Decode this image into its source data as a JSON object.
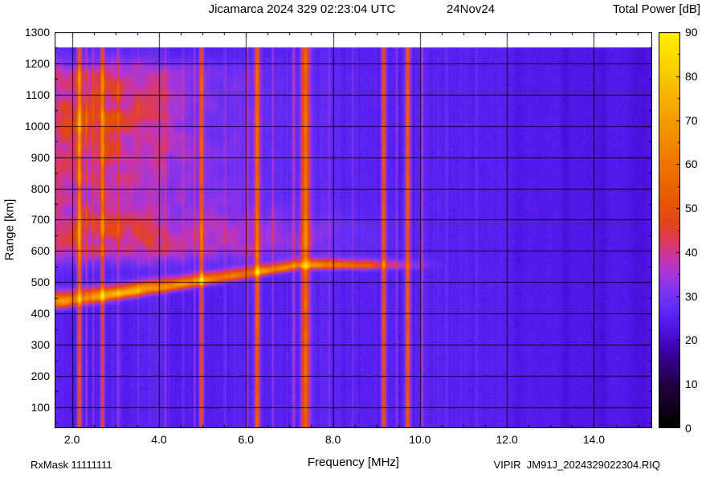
{
  "header": {
    "title": "Jicamarca 2024 329 02:23:04 UTC",
    "date": "24Nov24"
  },
  "footer": {
    "rx_mask": "RxMask 11111111",
    "filename": "VIPIR  JM91J_2024329022304.RIQ"
  },
  "chart_data": {
    "type": "heatmap",
    "title": "Jicamarca 2024 329 02:23:04 UTC 24Nov24",
    "xlabel": "Frequency [MHz]",
    "ylabel": "Range [km]",
    "x_range": [
      1.6,
      15.34
    ],
    "y_range": [
      33,
      1300
    ],
    "x_ticks": [
      2,
      4,
      6,
      8,
      10,
      12,
      14
    ],
    "x_tick_labels": [
      "2.0",
      "4.0",
      "6.0",
      "8.0",
      "10.0",
      "12.0",
      "14.0"
    ],
    "x_minor_step": 0.5,
    "y_ticks": [
      100,
      200,
      300,
      400,
      500,
      600,
      700,
      800,
      900,
      1000,
      1100,
      1200,
      1300
    ],
    "y_tick_labels": [
      "100",
      "200",
      "300",
      "400",
      "500",
      "600",
      "700",
      "800",
      "900",
      "1000",
      "1100",
      "1200",
      "1300"
    ],
    "y_minor_step": 50,
    "grid": true,
    "data_top_km": 1250,
    "colorbar": {
      "label": "Total Power [dB]",
      "min": 0,
      "max": 90,
      "ticks": [
        0,
        10,
        20,
        30,
        40,
        50,
        60,
        70,
        80,
        90
      ],
      "tick_labels": [
        "0",
        "10",
        "20",
        "30",
        "40",
        "50",
        "60",
        "70",
        "80",
        "90"
      ],
      "stops": [
        [
          0,
          "#000000"
        ],
        [
          9,
          "#1e0038"
        ],
        [
          17,
          "#3a00a0"
        ],
        [
          23,
          "#4f14e6"
        ],
        [
          27,
          "#5f2bf5"
        ],
        [
          31,
          "#7d33ef"
        ],
        [
          35,
          "#a836d8"
        ],
        [
          39,
          "#cc36a4"
        ],
        [
          43,
          "#dd3a50"
        ],
        [
          47,
          "#e24718"
        ],
        [
          52,
          "#e85800"
        ],
        [
          60,
          "#ef7500"
        ],
        [
          70,
          "#f59b00"
        ],
        [
          80,
          "#fac800"
        ],
        [
          90,
          "#fff200"
        ]
      ]
    },
    "features": {
      "background": {
        "base_db": 25.5,
        "noise_db": 1.6,
        "right_fade_db": 2.4,
        "right_fade_start_mhz": 10.5,
        "striation_db": 1.4,
        "striation_fade_mhz": [
          10.2,
          12.5
        ]
      },
      "spread_f": {
        "r_lower_km": 575,
        "r_upper_km": 1245,
        "amp_db": 11,
        "f_peak_mhz": 2.4,
        "f_sigma_mhz": 3.4,
        "blob": {
          "f_mhz": 2.6,
          "f_sigma": 1.6,
          "r_km": 1030,
          "r_sigma": 170,
          "amp_db": 9
        },
        "band": {
          "r_km": 645,
          "r_sigma": 80,
          "amp_db": 7,
          "f_fade": [
            5.5,
            10.5
          ]
        }
      },
      "echo_trace": {
        "f_start_mhz": 1.7,
        "f_knee_mhz": 7.2,
        "r_start_km": 438,
        "r_end_km": 553,
        "sigma_start_km": 30,
        "sigma_end_km": 18,
        "amp_db": 38,
        "low_f_boost_db": 6,
        "fade_mhz": [
          7.4,
          10.8
        ]
      },
      "rfi_bands": [
        {
          "f": 2.17,
          "sigma": 0.045,
          "amp": 28
        },
        {
          "f": 2.33,
          "sigma": 0.02,
          "amp": 12
        },
        {
          "f": 2.49,
          "sigma": 0.018,
          "amp": 8
        },
        {
          "f": 2.7,
          "sigma": 0.04,
          "amp": 22
        },
        {
          "f": 3.06,
          "sigma": 0.02,
          "amp": 8
        },
        {
          "f": 3.52,
          "sigma": 0.018,
          "amp": 6
        },
        {
          "f": 4.15,
          "sigma": 0.02,
          "amp": 7
        },
        {
          "f": 4.55,
          "sigma": 0.018,
          "amp": 6
        },
        {
          "f": 4.82,
          "sigma": 0.02,
          "amp": 10
        },
        {
          "f": 4.98,
          "sigma": 0.045,
          "amp": 27
        },
        {
          "f": 5.52,
          "sigma": 0.02,
          "amp": 6
        },
        {
          "f": 6.03,
          "sigma": 0.02,
          "amp": 10
        },
        {
          "f": 6.26,
          "sigma": 0.055,
          "amp": 30
        },
        {
          "f": 6.62,
          "sigma": 0.02,
          "amp": 9
        },
        {
          "f": 7.1,
          "sigma": 0.03,
          "amp": 12
        },
        {
          "f": 7.37,
          "sigma": 0.095,
          "amp": 31
        },
        {
          "f": 7.92,
          "sigma": 0.02,
          "amp": 6
        },
        {
          "f": 8.46,
          "sigma": 0.02,
          "amp": 5
        },
        {
          "f": 9.17,
          "sigma": 0.05,
          "amp": 26
        },
        {
          "f": 9.47,
          "sigma": 0.02,
          "amp": 8
        },
        {
          "f": 9.72,
          "sigma": 0.055,
          "amp": 29
        },
        {
          "f": 10.05,
          "sigma": 0.025,
          "amp": 10
        },
        {
          "f": 10.62,
          "sigma": 0.02,
          "amp": 5
        },
        {
          "f": 11.3,
          "sigma": 0.02,
          "amp": 4
        },
        {
          "f": 12.25,
          "sigma": 0.12,
          "amp": -2.5
        },
        {
          "f": 13.35,
          "sigma": 0.1,
          "amp": -2
        },
        {
          "f": 14.2,
          "sigma": 0.08,
          "amp": -1.5
        }
      ]
    }
  }
}
